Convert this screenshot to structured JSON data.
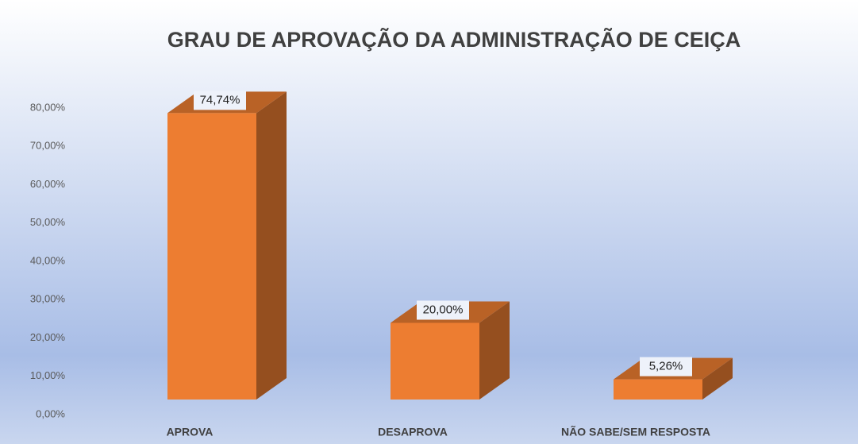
{
  "chart_data": {
    "type": "bar3d",
    "title": "GRAU DE APROVAÇÃO DA ADMINISTRAÇÃO DE CEIÇA",
    "categories": [
      "APROVA",
      "DESAPROVA",
      "NÃO SABE/SEM RESPOSTA"
    ],
    "values": [
      74.74,
      20.0,
      5.26
    ],
    "value_labels": [
      "74,74%",
      "20,00%",
      "5,26%"
    ],
    "color": "#ed7d31",
    "ylim": [
      0,
      80
    ],
    "yticks": [
      {
        "value": 0,
        "label": "0,00%"
      },
      {
        "value": 10,
        "label": "10,00%"
      },
      {
        "value": 20,
        "label": "20,00%"
      },
      {
        "value": 30,
        "label": "30,00%"
      },
      {
        "value": 40,
        "label": "40,00%"
      },
      {
        "value": 50,
        "label": "50,00%"
      },
      {
        "value": 60,
        "label": "60,00%"
      },
      {
        "value": 70,
        "label": "70,00%"
      },
      {
        "value": 80,
        "label": "80,00%"
      }
    ]
  }
}
